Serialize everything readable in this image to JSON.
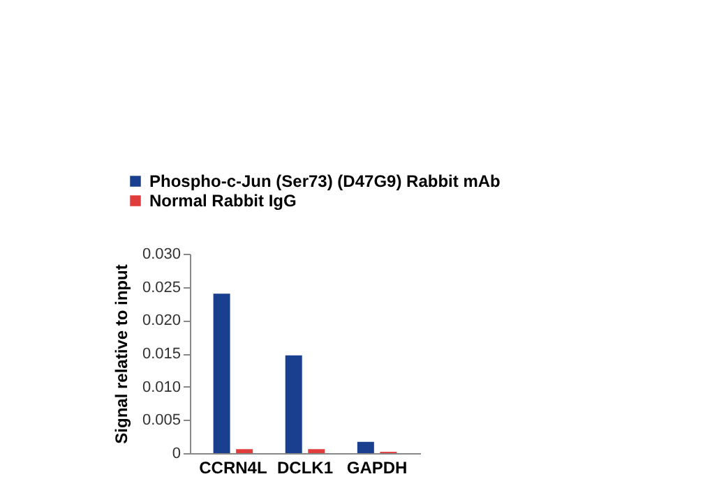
{
  "chart_data": {
    "type": "bar",
    "ylabel": "Signal relative to input",
    "categories": [
      "CCRN4L",
      "DCLK1",
      "GAPDH"
    ],
    "series": [
      {
        "name": "Phospho-c-Jun (Ser73) (D47G9) Rabbit mAb",
        "color": "#1b3f8f",
        "values": [
          0.024,
          0.0147,
          0.0017
        ]
      },
      {
        "name": "Normal Rabbit IgG",
        "color": "#e03c3c",
        "values": [
          0.0006,
          0.0006,
          0.0002
        ]
      }
    ],
    "ylim": [
      0,
      0.03
    ],
    "yticks": [
      {
        "value": 0,
        "label": "0"
      },
      {
        "value": 0.005,
        "label": "0.005"
      },
      {
        "value": 0.01,
        "label": "0.010"
      },
      {
        "value": 0.015,
        "label": "0.015"
      },
      {
        "value": 0.02,
        "label": "0.020"
      },
      {
        "value": 0.025,
        "label": "0.025"
      },
      {
        "value": 0.03,
        "label": "0.030"
      }
    ],
    "grid": false,
    "legend": "top"
  }
}
